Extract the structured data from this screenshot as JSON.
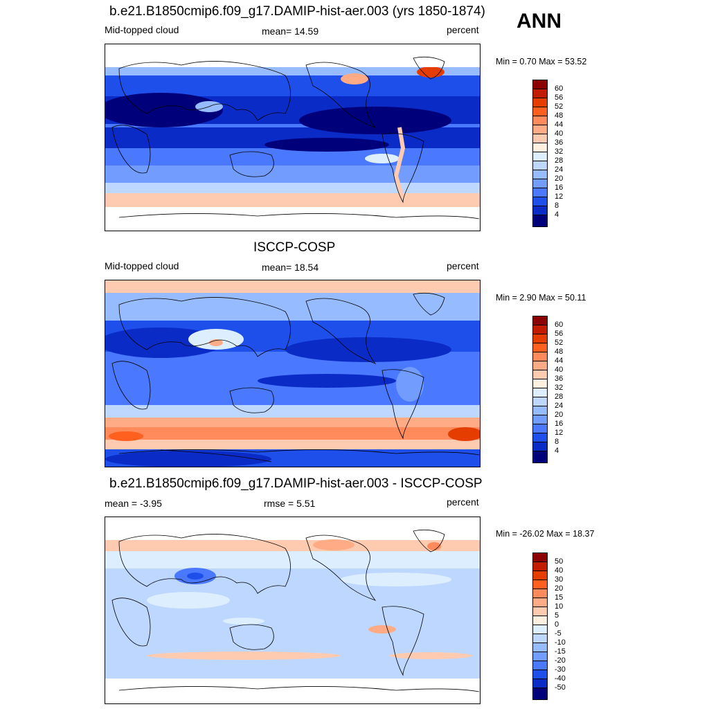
{
  "season": "ANN",
  "panels": [
    {
      "title": "b.e21.B1850cmip6.f09_g17.DAMIP-hist-aer.003 (yrs 1850-1874)",
      "left": "Mid-topped cloud",
      "center": "mean=  14.59",
      "right": "percent",
      "minmax": "Min =   0.70 Max =  53.52",
      "colorbar": {
        "labels": [
          "60",
          "56",
          "52",
          "48",
          "44",
          "40",
          "36",
          "32",
          "28",
          "24",
          "20",
          "16",
          "12",
          "8",
          "4"
        ],
        "colors": [
          "#8b0000",
          "#c21c00",
          "#e53d00",
          "#ff5f1f",
          "#ff8a5b",
          "#ffab85",
          "#ffcbb0",
          "#fff1e0",
          "#ddeeff",
          "#bdd7ff",
          "#97bbff",
          "#729dff",
          "#4a78ff",
          "#1f4fea",
          "#0b2bc7",
          "#00007a"
        ]
      }
    },
    {
      "title": "ISCCP-COSP",
      "left": "Mid-topped cloud",
      "center": "mean=  18.54",
      "right": "percent",
      "minmax": "Min =   2.90 Max =  50.11",
      "colorbar": {
        "labels": [
          "60",
          "56",
          "52",
          "48",
          "44",
          "40",
          "36",
          "32",
          "28",
          "24",
          "20",
          "16",
          "12",
          "8",
          "4"
        ],
        "colors": [
          "#8b0000",
          "#c21c00",
          "#e53d00",
          "#ff5f1f",
          "#ff8a5b",
          "#ffab85",
          "#ffcbb0",
          "#fff1e0",
          "#ddeeff",
          "#bdd7ff",
          "#97bbff",
          "#729dff",
          "#4a78ff",
          "#1f4fea",
          "#0b2bc7",
          "#00007a"
        ]
      }
    },
    {
      "title": "b.e21.B1850cmip6.f09_g17.DAMIP-hist-aer.003 - ISCCP-COSP",
      "left": "mean =  -3.95",
      "center": "rmse =   5.51",
      "right": "percent",
      "minmax": "Min = -26.02 Max =  18.37",
      "colorbar": {
        "labels": [
          "50",
          "40",
          "30",
          "20",
          "15",
          "10",
          "5",
          "0",
          "-5",
          "-10",
          "-15",
          "-20",
          "-30",
          "-40",
          "-50"
        ],
        "colors": [
          "#8b0000",
          "#c21c00",
          "#e53d00",
          "#ff5f1f",
          "#ff8a5b",
          "#ffab85",
          "#ffcbb0",
          "#fff1e0",
          "#ddeeff",
          "#bdd7ff",
          "#97bbff",
          "#729dff",
          "#4a78ff",
          "#1f4fea",
          "#0b2bc7",
          "#00007a"
        ]
      }
    }
  ]
}
